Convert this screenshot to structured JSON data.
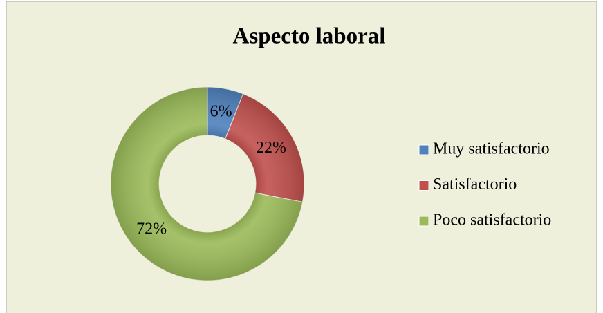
{
  "chart_data": {
    "type": "donut",
    "title": "Aspecto laboral",
    "categories": [
      "Muy satisfactorio",
      "Satisfactorio",
      "Poco satisfactorio"
    ],
    "values": [
      6,
      22,
      72
    ],
    "value_labels": [
      "6%",
      "22%",
      "72%"
    ],
    "colors": [
      "#4f81bd",
      "#c0504d",
      "#9bbb59"
    ],
    "legend": "right"
  }
}
